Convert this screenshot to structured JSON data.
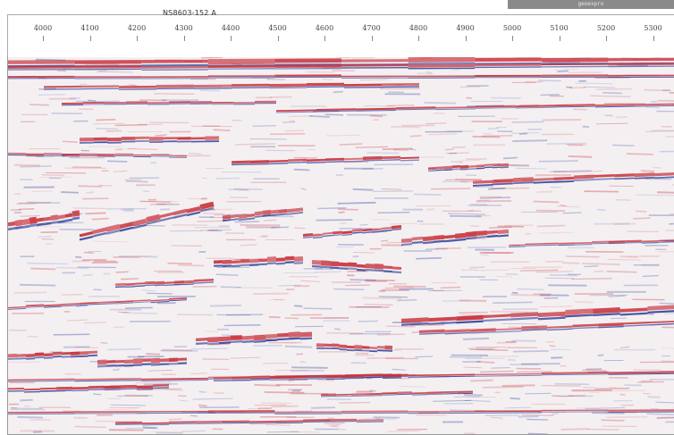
{
  "line_title": "NS8603-152 A",
  "watermark_text": "geoexpro",
  "trace_labels": [
    "4000",
    "4100",
    "4200",
    "4300",
    "4400",
    "4500",
    "4600",
    "4700",
    "4800",
    "4900",
    "5000",
    "5100",
    "5200",
    "5300"
  ],
  "colors": {
    "positive": "#c8323c",
    "negative": "#2a3f9a",
    "background": "#f4f0f2"
  }
}
